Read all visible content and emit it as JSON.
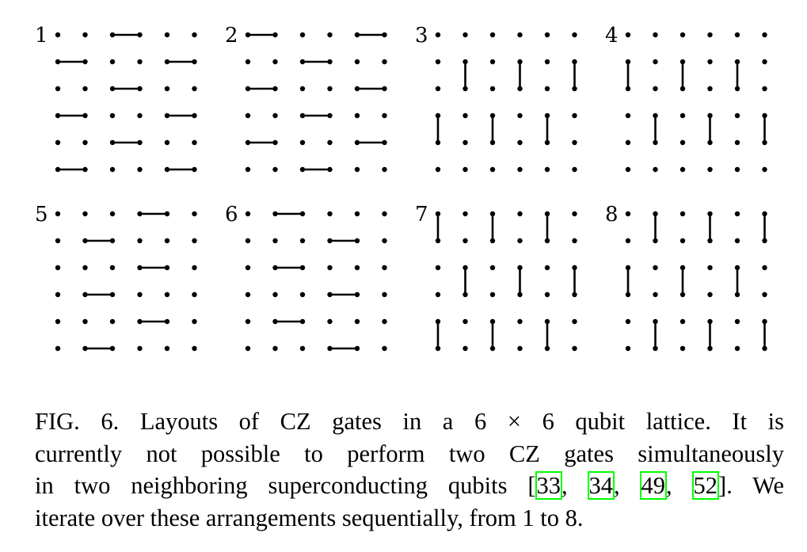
{
  "figure": {
    "panels": [
      {
        "label": "1",
        "orientation": "horizontal",
        "gates": [
          [
            0,
            2
          ],
          [
            1,
            0
          ],
          [
            1,
            4
          ],
          [
            2,
            2
          ],
          [
            3,
            0
          ],
          [
            3,
            4
          ],
          [
            4,
            2
          ],
          [
            5,
            0
          ],
          [
            5,
            4
          ]
        ]
      },
      {
        "label": "2",
        "orientation": "horizontal",
        "gates": [
          [
            0,
            0
          ],
          [
            0,
            4
          ],
          [
            1,
            2
          ],
          [
            2,
            0
          ],
          [
            2,
            4
          ],
          [
            3,
            2
          ],
          [
            4,
            0
          ],
          [
            4,
            4
          ],
          [
            5,
            2
          ]
        ]
      },
      {
        "label": "3",
        "orientation": "vertical",
        "gates": [
          [
            1,
            1
          ],
          [
            1,
            3
          ],
          [
            1,
            5
          ],
          [
            3,
            0
          ],
          [
            3,
            2
          ],
          [
            3,
            4
          ]
        ]
      },
      {
        "label": "4",
        "orientation": "vertical",
        "gates": [
          [
            1,
            0
          ],
          [
            1,
            2
          ],
          [
            1,
            4
          ],
          [
            3,
            1
          ],
          [
            3,
            3
          ],
          [
            3,
            5
          ]
        ]
      },
      {
        "label": "5",
        "orientation": "horizontal",
        "gates": [
          [
            0,
            3
          ],
          [
            1,
            1
          ],
          [
            2,
            3
          ],
          [
            3,
            1
          ],
          [
            4,
            3
          ],
          [
            5,
            1
          ]
        ]
      },
      {
        "label": "6",
        "orientation": "horizontal",
        "gates": [
          [
            0,
            1
          ],
          [
            1,
            3
          ],
          [
            2,
            1
          ],
          [
            3,
            3
          ],
          [
            4,
            1
          ],
          [
            5,
            3
          ]
        ]
      },
      {
        "label": "7",
        "orientation": "vertical",
        "gates": [
          [
            0,
            0
          ],
          [
            0,
            2
          ],
          [
            0,
            4
          ],
          [
            2,
            1
          ],
          [
            2,
            3
          ],
          [
            2,
            5
          ],
          [
            4,
            0
          ],
          [
            4,
            2
          ],
          [
            4,
            4
          ]
        ]
      },
      {
        "label": "8",
        "orientation": "vertical",
        "gates": [
          [
            0,
            1
          ],
          [
            0,
            3
          ],
          [
            0,
            5
          ],
          [
            2,
            0
          ],
          [
            2,
            2
          ],
          [
            2,
            4
          ],
          [
            4,
            1
          ],
          [
            4,
            3
          ],
          [
            4,
            5
          ]
        ]
      }
    ]
  },
  "caption": {
    "line1": "FIG. 6.  Layouts of CZ gates in a 6 × 6 qubit lattice.  It is",
    "line2": "currently not possible to perform two CZ gates simultaneously",
    "line3_pre": "in two neighboring superconducting qubits [",
    "cite1": "33",
    "sep1": ", ",
    "cite2": "34",
    "sep2": ", ",
    "cite3": "49",
    "sep3": ", ",
    "cite4": "52",
    "line3_post": "].  We",
    "line4": "iterate over these arrangements sequentially, from 1 to 8."
  }
}
